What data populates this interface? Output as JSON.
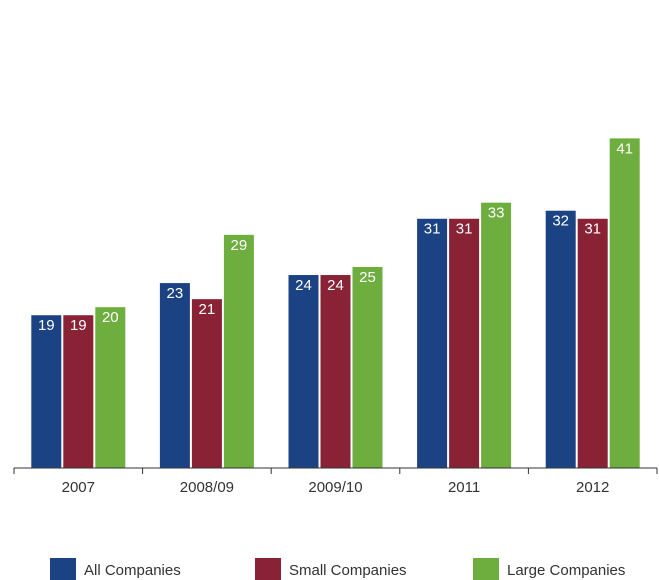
{
  "chart_data": {
    "type": "bar",
    "categories": [
      "2007",
      "2008/09",
      "2009/10",
      "2011",
      "2012"
    ],
    "series": [
      {
        "name": "All Companies",
        "color": "#1b4384",
        "values": [
          19,
          23,
          24,
          31,
          32
        ]
      },
      {
        "name": "Small Companies",
        "color": "#8a2236",
        "values": [
          19,
          21,
          24,
          31,
          31
        ]
      },
      {
        "name": "Large Companies",
        "color": "#6eae3f",
        "values": [
          20,
          29,
          25,
          33,
          41
        ]
      }
    ],
    "ylim": [
      0,
      50
    ]
  }
}
